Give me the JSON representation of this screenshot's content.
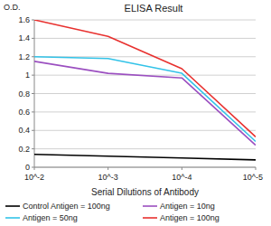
{
  "chart_data": {
    "type": "line",
    "title": "ELISA Result",
    "y_label": "O.D.",
    "x_label": "Serial Dilutions of Antibody",
    "x": [
      0.01,
      0.001,
      0.0001,
      1e-05
    ],
    "series": [
      {
        "name": "Control Antigen = 100ng",
        "color": "#000000",
        "values": [
          0.14,
          0.12,
          0.1,
          0.08
        ]
      },
      {
        "name": "Antigen = 10ng",
        "color": "#9b4fc0",
        "values": [
          1.15,
          1.02,
          0.97,
          0.24
        ]
      },
      {
        "name": "Antigen = 50ng",
        "color": "#33c3e8",
        "values": [
          1.2,
          1.18,
          1.02,
          0.28
        ]
      },
      {
        "name": "Antigen = 100ng",
        "color": "#e8312f",
        "values": [
          1.6,
          1.42,
          1.07,
          0.33
        ]
      }
    ],
    "xlim": [
      0.01,
      1e-05
    ],
    "xticks": [
      {
        "value": 0.01,
        "label": "10^-2"
      },
      {
        "value": 0.001,
        "label": "10^-3"
      },
      {
        "value": 0.0001,
        "label": "10^-4"
      },
      {
        "value": 1e-05,
        "label": "10^-5"
      }
    ],
    "ylim": [
      0,
      1.6
    ],
    "yticks": [
      0,
      0.2,
      0.4,
      0.6,
      0.8,
      1,
      1.2,
      1.4,
      1.6
    ],
    "log": "x",
    "grid": true,
    "legend": "bottom"
  }
}
